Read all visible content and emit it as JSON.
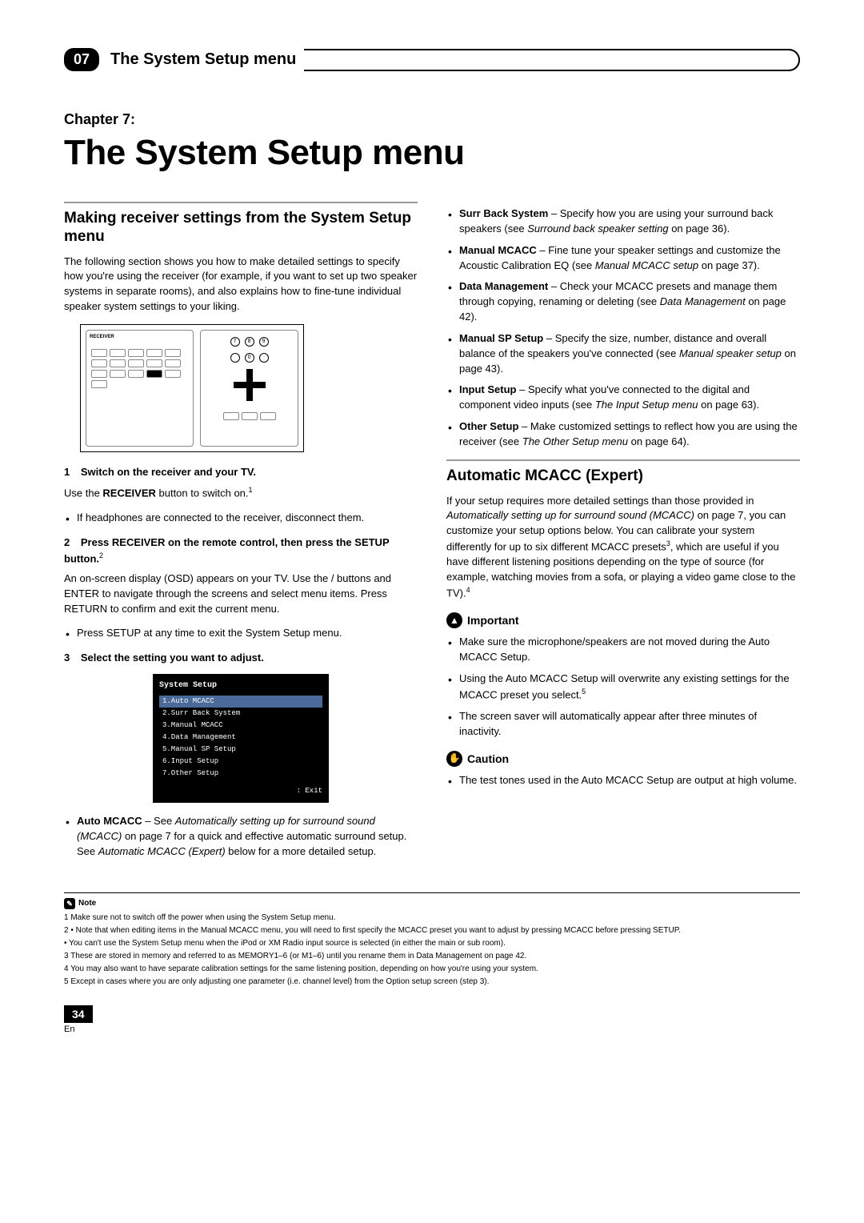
{
  "header": {
    "chapter_badge": "07",
    "title": "The System Setup menu"
  },
  "chapter": {
    "label": "Chapter 7:",
    "title": "The System Setup menu"
  },
  "left": {
    "section_title": "Making receiver settings from the System Setup menu",
    "intro": "The following section shows you how to make detailed settings to specify how you're using the receiver (for example, if you want to set up two speaker systems in separate rooms), and also explains how to fine-tune individual speaker system settings to your liking.",
    "step1_num": "1",
    "step1_text": "Switch on the receiver and your TV.",
    "step1_body_a": "Use the ",
    "step1_body_b": " RECEIVER",
    "step1_body_c": " button to switch on.",
    "step1_sup": "1",
    "step1_bullet": "If headphones are connected to the receiver, disconnect them.",
    "step2_num": "2",
    "step2_text_a": "Press RECEIVER on the remote control, then press the SETUP button.",
    "step2_sup": "2",
    "step2_body": "An on-screen display (OSD) appears on your TV. Use the  /  buttons and ENTER to navigate through the screens and select menu items. Press RETURN to confirm and exit the current menu.",
    "step2_bullet": "Press SETUP at any time to exit the System Setup menu.",
    "step3_num": "3",
    "step3_text": "Select the setting you want to adjust.",
    "osd": {
      "title": "System Setup",
      "items": [
        "1.Auto MCACC",
        "2.Surr Back System",
        "3.Manual MCACC",
        "4.Data Management",
        "5.Manual SP Setup",
        "6.Input Setup",
        "7.Other Setup"
      ],
      "exit": ": Exit"
    },
    "auto_mcacc_label": "Auto MCACC",
    "auto_mcacc_a": " – See ",
    "auto_mcacc_b": "Automatically setting up for surround sound (MCACC)",
    "auto_mcacc_c": " on page 7 for a quick and effective automatic surround setup. See ",
    "auto_mcacc_d": "Automatic MCACC (Expert)",
    "auto_mcacc_e": " below for a more detailed setup."
  },
  "right": {
    "items": [
      {
        "label": "Surr Back System",
        "a": " – Specify how you are using your surround back speakers (see ",
        "i": "Surround back speaker setting",
        "b": " on page 36)."
      },
      {
        "label": "Manual MCACC",
        "a": " – Fine tune your speaker settings and customize the Acoustic Calibration EQ (see ",
        "i": "Manual MCACC setup",
        "b": " on page 37)."
      },
      {
        "label": "Data Management",
        "a": " – Check your MCACC presets and manage them through copying, renaming or deleting (see ",
        "i": "Data Management",
        "b": " on page 42)."
      },
      {
        "label": "Manual SP Setup",
        "a": " – Specify the size, number, distance and overall balance of the speakers you've connected (see ",
        "i": "Manual speaker setup",
        "b": " on page 43)."
      },
      {
        "label": "Input Setup",
        "a": " – Specify what you've connected to the digital and component video inputs (see ",
        "i": "The Input Setup menu",
        "b": " on page 63)."
      },
      {
        "label": "Other Setup",
        "a": " – Make customized settings to reflect how you are using the receiver (see ",
        "i": "The Other Setup menu",
        "b": " on page 64)."
      }
    ],
    "section2_title": "Automatic MCACC (Expert)",
    "section2_a": "If your setup requires more detailed settings than those provided in ",
    "section2_b": "Automatically setting up for surround sound (MCACC)",
    "section2_c": " on page 7, you can customize your setup options below. You can calibrate your system differently for up to six different MCACC presets",
    "section2_sup1": "3",
    "section2_d": ", which are useful if you have different listening positions depending on the type of source (for example, watching movies from a sofa, or playing a video game close to the TV).",
    "section2_sup2": "4",
    "important_label": "Important",
    "important_items": [
      {
        "t": "Make sure the microphone/speakers are not moved during the Auto MCACC Setup."
      },
      {
        "t": "Using the Auto MCACC Setup will overwrite any existing settings for the MCACC preset you select.",
        "sup": "5"
      },
      {
        "t": "The screen saver will automatically appear after three minutes of inactivity."
      }
    ],
    "caution_label": "Caution",
    "caution_item": "The test tones used in the Auto MCACC Setup are output at high volume."
  },
  "footnotes": {
    "label": "Note",
    "items": [
      "1 Make sure not to switch off the power when using the System Setup menu.",
      "2 • Note that when editing items in the Manual MCACC menu, you will need to first specify the MCACC preset you want to adjust by pressing MCACC before pressing SETUP.",
      "   • You can't use the System Setup menu when the iPod or XM Radio input source is selected (in either the main or sub room).",
      "3 These are stored in memory and referred to as MEMORY1–6 (or M1–6) until you rename them in Data Management on page 42.",
      "4 You may also want to have separate calibration settings for the same listening position, depending on how you're using your system.",
      "5 Except in cases where you are only adjusting one parameter (i.e. channel level) from the Option setup screen (step 3)."
    ]
  },
  "page": {
    "num": "34",
    "lang": "En"
  }
}
